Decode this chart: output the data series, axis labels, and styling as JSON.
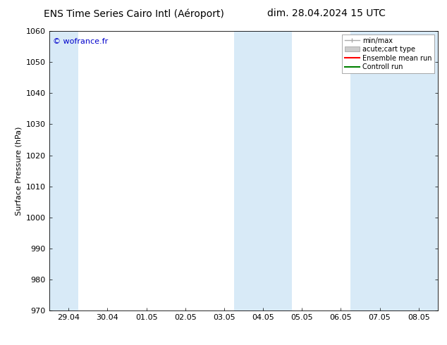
{
  "title_left": "ENS Time Series Cairo Intl (Aéroport)",
  "title_right": "dim. 28.04.2024 15 UTC",
  "ylabel": "Surface Pressure (hPa)",
  "ylim": [
    970,
    1060
  ],
  "yticks": [
    970,
    980,
    990,
    1000,
    1010,
    1020,
    1030,
    1040,
    1050,
    1060
  ],
  "xtick_labels": [
    "29.04",
    "30.04",
    "01.05",
    "02.05",
    "03.05",
    "04.05",
    "05.05",
    "06.05",
    "07.05",
    "08.05"
  ],
  "xtick_positions": [
    0,
    1,
    2,
    3,
    4,
    5,
    6,
    7,
    8,
    9
  ],
  "xlim": [
    -0.5,
    9.5
  ],
  "background_color": "#ffffff",
  "plot_bg_color": "#ffffff",
  "shaded_regions": [
    {
      "x_start": -0.5,
      "x_end": 0.25,
      "color": "#d8eaf7"
    },
    {
      "x_start": 4.25,
      "x_end": 5.75,
      "color": "#d8eaf7"
    },
    {
      "x_start": 7.25,
      "x_end": 9.5,
      "color": "#d8eaf7"
    }
  ],
  "copyright_text": "© wofrance.fr",
  "copyright_color": "#0000cc",
  "legend_entries": [
    {
      "label": "min/max",
      "color": "#aaaaaa",
      "lw": 1.0,
      "ls": "-",
      "type": "errorbar"
    },
    {
      "label": "acute;cart type",
      "color": "#cccccc",
      "lw": 8,
      "ls": "-",
      "type": "band"
    },
    {
      "label": "Ensemble mean run",
      "color": "#ff0000",
      "lw": 1.5,
      "ls": "-",
      "type": "line"
    },
    {
      "label": "Controll run",
      "color": "#008000",
      "lw": 1.5,
      "ls": "-",
      "type": "line"
    }
  ],
  "title_fontsize": 10,
  "axis_fontsize": 8,
  "tick_fontsize": 8,
  "copyright_fontsize": 8,
  "legend_fontsize": 7
}
